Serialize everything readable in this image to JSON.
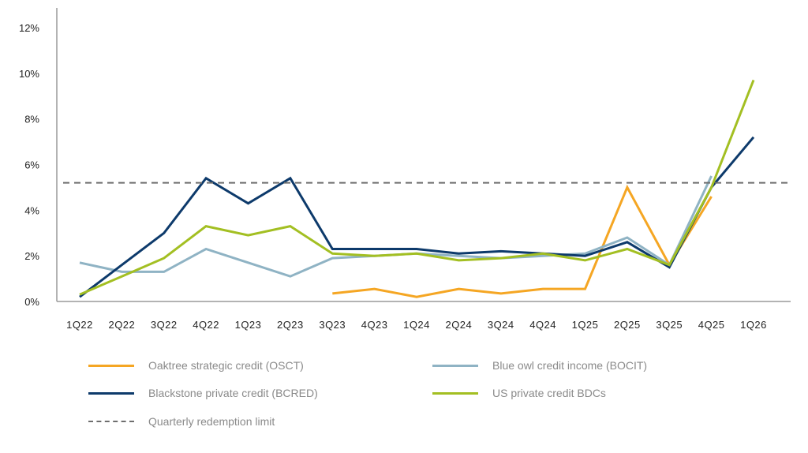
{
  "chart_data": {
    "type": "line",
    "title": "",
    "xlabel": "",
    "ylabel": "",
    "categories": [
      "1Q22",
      "2Q22",
      "3Q22",
      "4Q22",
      "1Q23",
      "2Q23",
      "3Q23",
      "4Q23",
      "1Q24",
      "2Q24",
      "3Q24",
      "4Q24",
      "1Q25",
      "2Q25",
      "3Q25",
      "4Q25",
      "1Q26"
    ],
    "ylim": [
      0,
      12
    ],
    "yticks": [
      "0%",
      "2%",
      "4%",
      "6%",
      "8%",
      "10%",
      "12%"
    ],
    "grid": false,
    "legend_position": "bottom",
    "series": [
      {
        "name": "Oaktree strategic credit (OSCT)",
        "color": "#f5a623",
        "dashed": false,
        "values": [
          null,
          null,
          null,
          null,
          null,
          null,
          0.35,
          0.55,
          0.2,
          0.55,
          0.35,
          0.55,
          0.55,
          5.0,
          1.6,
          4.6,
          null
        ]
      },
      {
        "name": "Blue owl credit income (BOCIT)",
        "color": "#8fb3c4",
        "dashed": false,
        "values": [
          1.7,
          1.3,
          1.3,
          2.3,
          1.7,
          1.1,
          1.9,
          2.0,
          2.1,
          2.0,
          1.9,
          2.0,
          2.1,
          2.8,
          1.6,
          5.5,
          null
        ]
      },
      {
        "name": "Blackstone private credit (BCRED)",
        "color": "#0d3a6b",
        "dashed": false,
        "values": [
          0.2,
          1.6,
          3.0,
          5.4,
          4.3,
          5.4,
          2.3,
          2.3,
          2.3,
          2.1,
          2.2,
          2.1,
          2.0,
          2.6,
          1.5,
          5.0,
          7.2
        ]
      },
      {
        "name": "US private credit BDCs",
        "color": "#a3bf22",
        "dashed": false,
        "values": [
          0.3,
          1.1,
          1.9,
          3.3,
          2.9,
          3.3,
          2.1,
          2.0,
          2.1,
          1.8,
          1.9,
          2.1,
          1.8,
          2.3,
          1.6,
          5.0,
          9.7
        ]
      },
      {
        "name": "Quarterly redemption limit",
        "color": "#6e6e6e",
        "dashed": true,
        "constant": 5.2
      }
    ]
  }
}
